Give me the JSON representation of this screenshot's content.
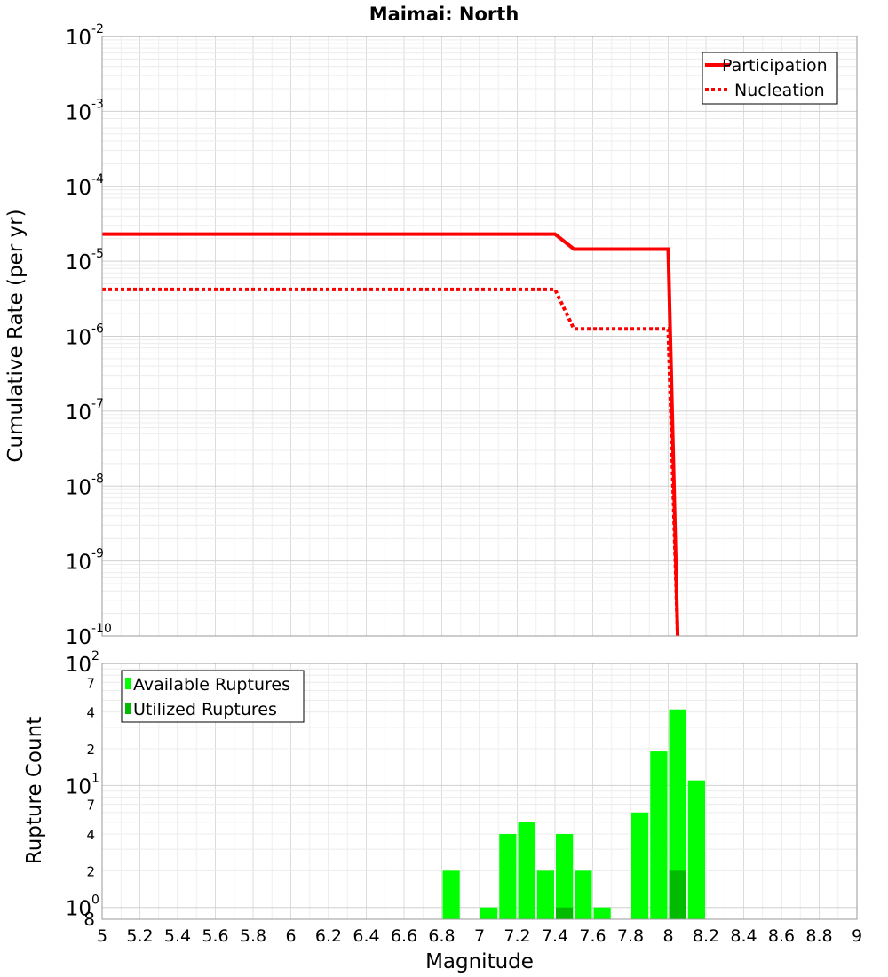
{
  "chart_data": [
    {
      "type": "line",
      "title": "Maimai: North",
      "xlabel": "",
      "ylabel": "Cumulative Rate (per yr)",
      "xlim": [
        5,
        9
      ],
      "ylim": [
        1e-10,
        0.01
      ],
      "y_scale": "log",
      "y_tick_mantissa": "10",
      "y_tick_exponents": [
        "-2",
        "-3",
        "-4",
        "-5",
        "-6",
        "-7",
        "-8",
        "-9",
        "-10"
      ],
      "legend_position": "top-right",
      "grid": true,
      "series": [
        {
          "name": "Participation",
          "color": "#ff0000",
          "dash": "solid",
          "points": [
            [
              5.0,
              2.3e-05
            ],
            [
              7.4,
              2.3e-05
            ],
            [
              7.5,
              1.45e-05
            ],
            [
              8.0,
              1.45e-05
            ],
            [
              8.05,
              1e-10
            ]
          ]
        },
        {
          "name": "Nucleation",
          "color": "#ff0000",
          "dash": "dotted",
          "points": [
            [
              5.0,
              4.2e-06
            ],
            [
              7.4,
              4.2e-06
            ],
            [
              7.5,
              1.25e-06
            ],
            [
              8.0,
              1.25e-06
            ],
            [
              8.05,
              1e-10
            ]
          ]
        }
      ]
    },
    {
      "type": "bar",
      "xlabel": "Magnitude",
      "ylabel": "Rupture Count",
      "xlim": [
        5,
        9
      ],
      "ylim": [
        0.8,
        100
      ],
      "y_scale": "log",
      "x_ticks": [
        "5",
        "5.2",
        "5.4",
        "5.6",
        "5.8",
        "6",
        "6.2",
        "6.4",
        "6.6",
        "6.8",
        "7",
        "7.2",
        "7.4",
        "7.6",
        "7.8",
        "8",
        "8.2",
        "8.4",
        "8.6",
        "8.8",
        "9"
      ],
      "y_major_ticks": [
        {
          "mantissa": "10",
          "exp": "2",
          "value": 100
        },
        {
          "mantissa": "10",
          "exp": "1",
          "value": 10
        },
        {
          "mantissa": "10",
          "exp": "0",
          "value": 1
        }
      ],
      "y_minor_ticks": [
        {
          "label": "7",
          "value": 70
        },
        {
          "label": "4",
          "value": 40
        },
        {
          "label": "2",
          "value": 20
        },
        {
          "label": "7",
          "value": 7
        },
        {
          "label": "4",
          "value": 4
        },
        {
          "label": "2",
          "value": 2
        },
        {
          "label": "8",
          "value": 0.8
        }
      ],
      "legend_position": "top-left",
      "grid": true,
      "series": [
        {
          "name": "Available Ruptures",
          "color": "#00ff00",
          "bars": [
            [
              6.85,
              2
            ],
            [
              7.05,
              1
            ],
            [
              7.15,
              4
            ],
            [
              7.25,
              5
            ],
            [
              7.35,
              2
            ],
            [
              7.45,
              4
            ],
            [
              7.55,
              2
            ],
            [
              7.65,
              1
            ],
            [
              7.85,
              6
            ],
            [
              7.95,
              19
            ],
            [
              8.05,
              42
            ],
            [
              8.15,
              11
            ]
          ]
        },
        {
          "name": "Utilized Ruptures",
          "color": "#00bb00",
          "bars": [
            [
              7.45,
              1
            ],
            [
              8.05,
              2
            ]
          ]
        }
      ]
    }
  ]
}
